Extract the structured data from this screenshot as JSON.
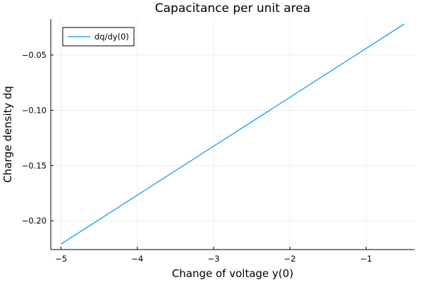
{
  "chart_data": {
    "type": "line",
    "title": "Capacitance per unit area",
    "xlabel": "Change of voltage y(0)",
    "ylabel": "Charge density dq",
    "xlim": [
      -5.135,
      -0.365
    ],
    "ylim": [
      -0.226,
      -0.0175
    ],
    "xticks": [
      {
        "value": -5,
        "label": "−5"
      },
      {
        "value": -4,
        "label": "−4"
      },
      {
        "value": -3,
        "label": "−3"
      },
      {
        "value": -2,
        "label": "−2"
      },
      {
        "value": -1,
        "label": "−1"
      }
    ],
    "yticks": [
      {
        "value": -0.05,
        "label": "−0.05"
      },
      {
        "value": -0.1,
        "label": "−0.10"
      },
      {
        "value": -0.15,
        "label": "−0.15"
      },
      {
        "value": -0.2,
        "label": "−0.20"
      }
    ],
    "grid": true,
    "legend": {
      "position": "top-left"
    },
    "series": [
      {
        "name": "dq/dy(0)",
        "color": "#009af9",
        "x": [
          -5.0,
          -0.5
        ],
        "y": [
          -0.221,
          -0.022
        ]
      }
    ]
  }
}
